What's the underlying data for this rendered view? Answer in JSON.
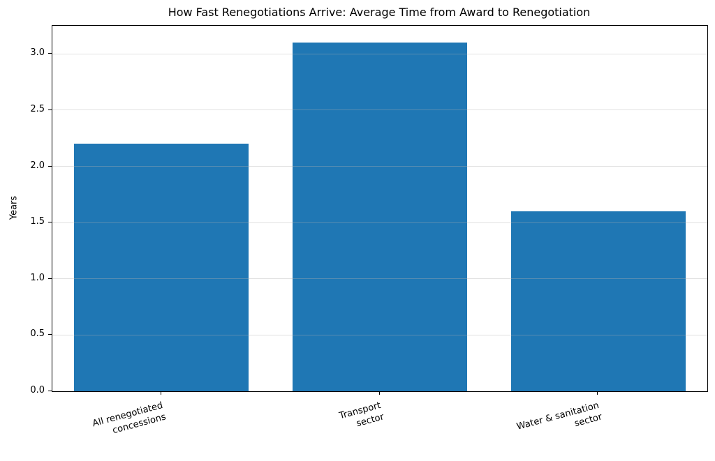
{
  "chart_data": {
    "type": "bar",
    "title": "How Fast Renegotiations Arrive: Average Time from Award to Renegotiation",
    "ylabel": "Years",
    "xlabel": "",
    "categories": [
      "All renegotiated\nconcessions",
      "Transport\nsector",
      "Water & sanitation\nsector"
    ],
    "values": [
      2.2,
      3.1,
      1.6
    ],
    "yticks": [
      0.0,
      0.5,
      1.0,
      1.5,
      2.0,
      2.5,
      3.0
    ],
    "ylim": [
      0,
      3.25
    ],
    "bar_color": "#1f77b4",
    "grid": true,
    "grid_color": "#b0b0b0",
    "bar_width_fraction": 0.8,
    "xtick_rotation_deg": 15,
    "legend": null
  }
}
